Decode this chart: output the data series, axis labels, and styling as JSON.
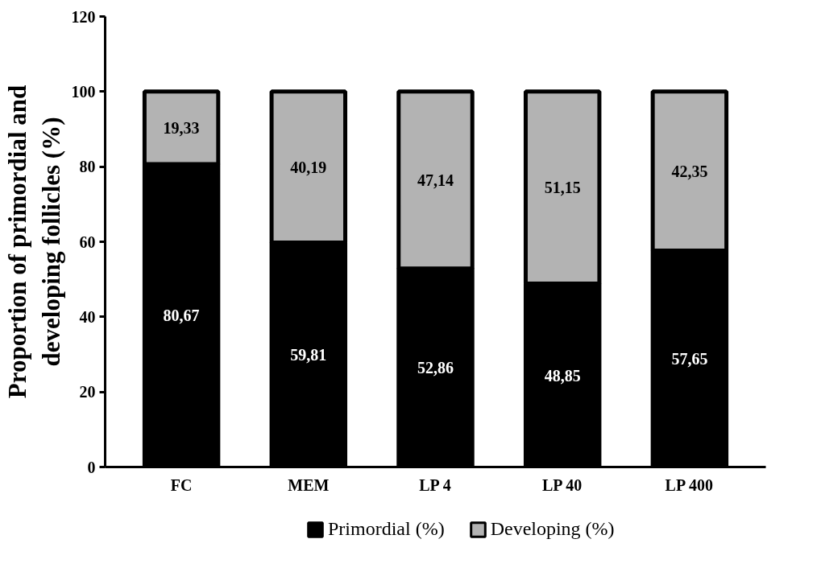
{
  "chart_data": {
    "type": "bar",
    "stacked": true,
    "ylabel": "Proportion of primordial and\ndeveloping follicles (%)",
    "categories": [
      "FC",
      "MEM",
      "LP 4",
      "LP 40",
      "LP 400"
    ],
    "series": [
      {
        "name": "Primordial (%)",
        "color": "#000000",
        "values": [
          80.67,
          59.81,
          52.86,
          48.85,
          57.65
        ],
        "value_labels": [
          "80,67",
          "59,81",
          "52,86",
          "48,85",
          "57,65"
        ]
      },
      {
        "name": "Developing (%)",
        "color": "#b3b3b3",
        "values": [
          19.33,
          40.19,
          47.14,
          51.15,
          42.35
        ],
        "value_labels": [
          "19,33",
          "40,19",
          "47,14",
          "51,15",
          "42,35"
        ]
      }
    ],
    "ylim": [
      0,
      120
    ],
    "yticks": [
      0,
      20,
      40,
      60,
      80,
      100,
      120
    ],
    "legend": "bottom"
  }
}
